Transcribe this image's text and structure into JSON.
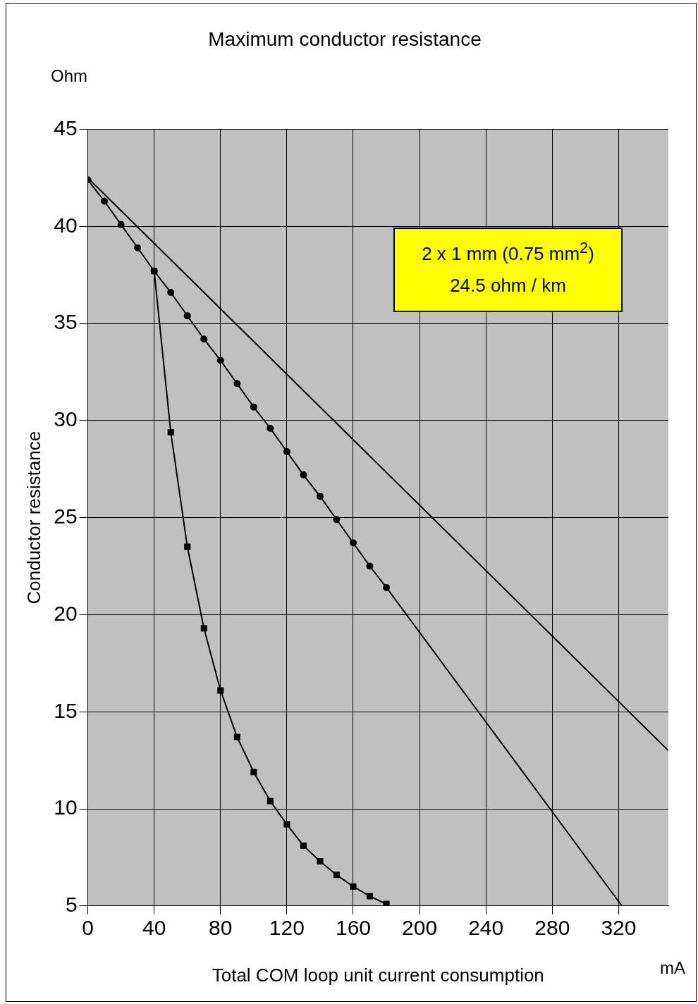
{
  "chart_data": {
    "type": "line",
    "title": "Maximum conductor resistance",
    "xlabel": "Total COM loop unit current consumption",
    "ylabel": "Conductor resistance",
    "annotations": [
      "2 x 1 mm (0.75 mm$^{2}$)",
      "24.5 ohm / km",
      "Ohm",
      "mA"
    ],
    "xlim": [
      0,
      350
    ],
    "xticks": [
      0,
      40,
      80,
      120,
      160,
      200,
      240,
      280,
      320
    ],
    "ylim": [
      5,
      45
    ],
    "yticks": [
      5,
      10,
      15,
      20,
      25,
      30,
      35,
      40,
      45
    ],
    "grid": true,
    "legend": false,
    "series": [
      {
        "color": "#000000",
        "marker": "none",
        "x": [
          0,
          350
        ],
        "values": [
          42.5,
          13.0
        ]
      },
      {
        "color": "#000000",
        "marker": "circle",
        "x": [
          0,
          10,
          20,
          30,
          40,
          50,
          60,
          70,
          80,
          90,
          100,
          110,
          120,
          130,
          140,
          150,
          160,
          170,
          180
        ],
        "values": [
          42.4,
          41.3,
          40.1,
          38.9,
          37.7,
          36.6,
          35.4,
          34.2,
          33.1,
          31.9,
          30.7,
          29.6,
          28.4,
          27.2,
          26.1,
          24.9,
          23.7,
          22.5,
          21.4
        ]
      },
      {
        "color": "#000000",
        "marker": "none",
        "x": [
          180,
          322
        ],
        "values": [
          21.4,
          5
        ]
      },
      {
        "color": "#000000",
        "marker": "square",
        "x": [
          40,
          50,
          60,
          70,
          80,
          90,
          100,
          110,
          120,
          130,
          140,
          150,
          160,
          170,
          180
        ],
        "values": [
          37.7,
          29.4,
          23.5,
          19.3,
          16.1,
          13.7,
          11.9,
          10.4,
          9.2,
          8.1,
          7.3,
          6.6,
          6.0,
          5.5,
          5.1
        ]
      }
    ]
  }
}
